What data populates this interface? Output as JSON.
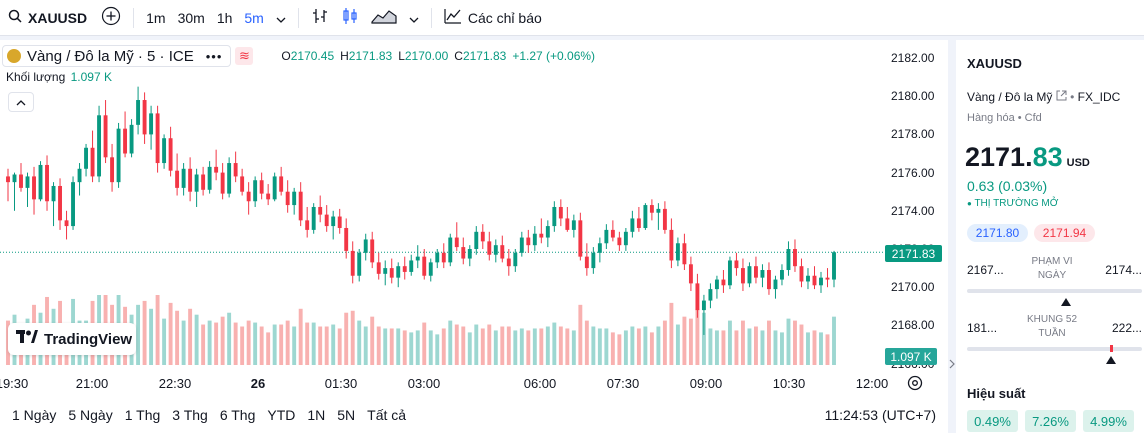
{
  "toolbar": {
    "symbol": "XAUUSD",
    "timeframes": [
      "1m",
      "30m",
      "1h",
      "5m"
    ],
    "indicators_label": "Các chỉ báo"
  },
  "legend": {
    "title": "Vàng / Đô la Mỹ · 5 · ICE",
    "o_label": "O",
    "o": "2170.45",
    "h_label": "H",
    "h": "2171.83",
    "l_label": "L",
    "l": "2170.00",
    "c_label": "C",
    "c": "2171.83",
    "change": "+1.27 (+0.06%)",
    "volume_label": "Khối lượng",
    "volume_value": "1.097 K"
  },
  "y_axis": [
    "2182.00",
    "2180.00",
    "2178.00",
    "2176.00",
    "2174.00",
    "2172.00",
    "2170.00",
    "2168.00",
    "2166.00"
  ],
  "x_axis": [
    "19:30",
    "21:00",
    "22:30",
    "26",
    "01:30",
    "03:00",
    "06:00",
    "07:30",
    "09:00",
    "10:30",
    "12:00"
  ],
  "last_price_tag": "2171.83",
  "volume_tag": "1.097 K",
  "logo_text": "TradingView",
  "ranges": [
    "1 Ngày",
    "5 Ngày",
    "1 Thg",
    "3 Thg",
    "6 Thg",
    "YTD",
    "1N",
    "5N",
    "Tất cả"
  ],
  "clock": "11:24:53 (UTC+7)",
  "panel": {
    "symbol": "XAUUSD",
    "name": "Vàng / Đô la Mỹ",
    "source": "FX_IDC",
    "category": "Hàng hóa • Cfd",
    "price_int": "2171.",
    "price_dec": "83",
    "currency": "USD",
    "change": "0.63 (0.03%)",
    "market_status": "THỊ TRƯỜNG MỞ",
    "bid": "2171.80",
    "ask": "2171.94",
    "day_low": "2167...",
    "day_high": "2174...",
    "day_label_1": "PHẠM VI",
    "day_label_2": "NGÀY",
    "week_low": "181...",
    "week_high": "222...",
    "week_label_1": "KHUNG 52",
    "week_label_2": "TUẦN",
    "performance_title": "Hiệu suất",
    "performance": [
      "0.49%",
      "7.26%",
      "4.99%"
    ]
  },
  "chart_data": {
    "type": "candlestick",
    "ylim": [
      2166,
      2183
    ],
    "candles": [
      [
        2175.8,
        2176.2,
        2174.5,
        2175.5
      ],
      [
        2175.5,
        2176.0,
        2174.0,
        2175.9
      ],
      [
        2175.9,
        2176.5,
        2175.0,
        2175.2
      ],
      [
        2175.2,
        2176.0,
        2174.2,
        2175.8
      ],
      [
        2175.8,
        2176.3,
        2173.8,
        2174.6
      ],
      [
        2174.6,
        2176.6,
        2174.5,
        2176.4
      ],
      [
        2176.4,
        2176.9,
        2174.0,
        2174.5
      ],
      [
        2174.5,
        2175.5,
        2173.2,
        2175.3
      ],
      [
        2175.3,
        2175.7,
        2173.0,
        2173.5
      ],
      [
        2173.5,
        2174.0,
        2172.5,
        2173.2
      ],
      [
        2173.2,
        2175.8,
        2173.0,
        2175.5
      ],
      [
        2175.5,
        2176.5,
        2174.8,
        2176.2
      ],
      [
        2176.2,
        2177.5,
        2175.8,
        2177.3
      ],
      [
        2177.3,
        2178.2,
        2175.5,
        2175.8
      ],
      [
        2175.8,
        2179.5,
        2175.5,
        2179.0
      ],
      [
        2179.0,
        2179.8,
        2176.5,
        2176.8
      ],
      [
        2176.8,
        2177.5,
        2175.0,
        2175.5
      ],
      [
        2175.5,
        2178.6,
        2175.2,
        2178.3
      ],
      [
        2178.3,
        2179.2,
        2176.8,
        2177.0
      ],
      [
        2177.0,
        2178.8,
        2176.8,
        2178.5
      ],
      [
        2178.5,
        2180.5,
        2178.0,
        2179.8
      ],
      [
        2179.8,
        2180.2,
        2177.5,
        2178.0
      ],
      [
        2178.0,
        2179.5,
        2177.2,
        2179.1
      ],
      [
        2179.1,
        2179.5,
        2176.0,
        2176.5
      ],
      [
        2176.5,
        2178.0,
        2176.2,
        2177.8
      ],
      [
        2177.8,
        2178.4,
        2175.8,
        2176.1
      ],
      [
        2176.1,
        2177.0,
        2174.8,
        2175.2
      ],
      [
        2175.2,
        2176.5,
        2174.8,
        2176.2
      ],
      [
        2176.2,
        2176.8,
        2174.5,
        2175.0
      ],
      [
        2175.0,
        2176.2,
        2174.2,
        2175.9
      ],
      [
        2175.9,
        2176.3,
        2174.8,
        2175.1
      ],
      [
        2175.1,
        2176.6,
        2174.9,
        2176.3
      ],
      [
        2176.3,
        2177.2,
        2175.6,
        2176.0
      ],
      [
        2176.0,
        2176.5,
        2174.6,
        2174.9
      ],
      [
        2174.9,
        2176.8,
        2174.7,
        2176.5
      ],
      [
        2176.5,
        2177.1,
        2175.5,
        2175.8
      ],
      [
        2175.8,
        2176.2,
        2174.8,
        2175.0
      ],
      [
        2175.0,
        2175.5,
        2173.8,
        2174.5
      ],
      [
        2174.5,
        2175.8,
        2174.2,
        2175.6
      ],
      [
        2175.6,
        2176.0,
        2174.6,
        2174.9
      ],
      [
        2174.9,
        2175.4,
        2174.3,
        2174.6
      ],
      [
        2174.6,
        2176.0,
        2174.5,
        2175.8
      ],
      [
        2175.8,
        2176.3,
        2174.8,
        2175.0
      ],
      [
        2175.0,
        2175.6,
        2173.9,
        2174.3
      ],
      [
        2174.3,
        2175.2,
        2173.8,
        2175.0
      ],
      [
        2175.0,
        2175.5,
        2173.2,
        2173.5
      ],
      [
        2173.5,
        2174.2,
        2172.6,
        2173.0
      ],
      [
        2173.0,
        2174.4,
        2172.8,
        2174.2
      ],
      [
        2174.2,
        2174.8,
        2173.4,
        2173.8
      ],
      [
        2173.8,
        2174.3,
        2172.9,
        2173.2
      ],
      [
        2173.2,
        2174.0,
        2172.5,
        2173.7
      ],
      [
        2173.7,
        2174.1,
        2172.8,
        2173.1
      ],
      [
        2173.1,
        2173.6,
        2171.5,
        2171.9
      ],
      [
        2171.9,
        2172.4,
        2170.2,
        2170.6
      ],
      [
        2170.6,
        2172.0,
        2170.3,
        2171.8
      ],
      [
        2171.8,
        2172.8,
        2171.4,
        2172.5
      ],
      [
        2172.5,
        2172.9,
        2171.0,
        2171.3
      ],
      [
        2171.3,
        2171.8,
        2170.4,
        2170.7
      ],
      [
        2170.7,
        2171.4,
        2170.1,
        2171.0
      ],
      [
        2171.0,
        2171.5,
        2170.2,
        2170.5
      ],
      [
        2170.5,
        2171.3,
        2170.0,
        2171.1
      ],
      [
        2171.1,
        2171.6,
        2170.4,
        2170.8
      ],
      [
        2170.8,
        2171.7,
        2170.6,
        2171.4
      ],
      [
        2171.4,
        2172.2,
        2171.0,
        2171.6
      ],
      [
        2171.6,
        2172.0,
        2170.4,
        2170.6
      ],
      [
        2170.6,
        2171.5,
        2170.3,
        2171.3
      ],
      [
        2171.3,
        2172.0,
        2171.0,
        2171.8
      ],
      [
        2171.8,
        2172.3,
        2171.0,
        2171.3
      ],
      [
        2171.3,
        2172.8,
        2171.1,
        2172.6
      ],
      [
        2172.6,
        2173.4,
        2171.9,
        2172.1
      ],
      [
        2172.1,
        2172.6,
        2171.2,
        2171.5
      ],
      [
        2171.5,
        2172.2,
        2171.1,
        2172.0
      ],
      [
        2172.0,
        2173.2,
        2171.7,
        2172.9
      ],
      [
        2172.9,
        2173.3,
        2172.0,
        2172.4
      ],
      [
        2172.4,
        2172.9,
        2171.4,
        2171.7
      ],
      [
        2171.7,
        2172.5,
        2171.3,
        2172.2
      ],
      [
        2172.2,
        2172.7,
        2171.3,
        2171.5
      ],
      [
        2171.5,
        2172.0,
        2170.6,
        2171.1
      ],
      [
        2171.1,
        2172.0,
        2170.8,
        2171.8
      ],
      [
        2171.8,
        2172.9,
        2171.6,
        2172.6
      ],
      [
        2172.6,
        2173.0,
        2171.8,
        2172.2
      ],
      [
        2172.2,
        2173.2,
        2171.9,
        2172.8
      ],
      [
        2172.8,
        2173.6,
        2172.3,
        2172.6
      ],
      [
        2172.6,
        2173.5,
        2172.1,
        2173.2
      ],
      [
        2173.2,
        2174.5,
        2172.9,
        2174.2
      ],
      [
        2174.2,
        2174.6,
        2173.2,
        2173.6
      ],
      [
        2173.6,
        2174.2,
        2172.9,
        2173.0
      ],
      [
        2173.0,
        2173.8,
        2172.6,
        2173.5
      ],
      [
        2173.5,
        2173.9,
        2171.4,
        2171.6
      ],
      [
        2171.6,
        2172.3,
        2170.6,
        2171.0
      ],
      [
        2171.0,
        2172.1,
        2170.7,
        2171.8
      ],
      [
        2171.8,
        2172.6,
        2171.3,
        2172.3
      ],
      [
        2172.3,
        2173.3,
        2172.0,
        2173.0
      ],
      [
        2173.0,
        2173.5,
        2172.4,
        2172.6
      ],
      [
        2172.6,
        2172.9,
        2171.9,
        2172.2
      ],
      [
        2172.2,
        2173.1,
        2171.9,
        2172.9
      ],
      [
        2172.9,
        2174.0,
        2172.6,
        2173.6
      ],
      [
        2173.6,
        2174.2,
        2172.9,
        2173.1
      ],
      [
        2173.1,
        2174.4,
        2173.0,
        2174.3
      ],
      [
        2174.3,
        2174.6,
        2173.5,
        2173.9
      ],
      [
        2173.9,
        2174.4,
        2173.0,
        2174.1
      ],
      [
        2174.1,
        2174.5,
        2172.8,
        2173.0
      ],
      [
        2173.0,
        2173.6,
        2171.0,
        2171.4
      ],
      [
        2171.4,
        2172.6,
        2171.1,
        2172.3
      ],
      [
        2172.3,
        2172.8,
        2170.9,
        2171.2
      ],
      [
        2171.2,
        2171.6,
        2169.8,
        2170.2
      ],
      [
        2170.2,
        2170.7,
        2168.4,
        2168.8
      ],
      [
        2168.8,
        2169.6,
        2167.5,
        2169.3
      ],
      [
        2169.3,
        2170.2,
        2168.9,
        2169.9
      ],
      [
        2169.9,
        2170.6,
        2169.4,
        2170.4
      ],
      [
        2170.4,
        2170.9,
        2169.7,
        2170.1
      ],
      [
        2170.1,
        2171.6,
        2169.9,
        2171.4
      ],
      [
        2171.4,
        2171.8,
        2170.6,
        2171.0
      ],
      [
        2171.0,
        2171.5,
        2169.8,
        2170.2
      ],
      [
        2170.2,
        2171.3,
        2170.0,
        2171.1
      ],
      [
        2171.1,
        2171.6,
        2170.2,
        2170.5
      ],
      [
        2170.5,
        2171.2,
        2170.0,
        2170.9
      ],
      [
        2170.9,
        2171.3,
        2169.6,
        2169.9
      ],
      [
        2169.9,
        2170.6,
        2169.4,
        2170.4
      ],
      [
        2170.4,
        2171.2,
        2170.1,
        2170.9
      ],
      [
        2170.9,
        2172.4,
        2170.6,
        2172.0
      ],
      [
        2172.0,
        2172.5,
        2170.8,
        2171.1
      ],
      [
        2171.1,
        2171.5,
        2170.0,
        2170.3
      ],
      [
        2170.3,
        2171.0,
        2169.9,
        2170.6
      ],
      [
        2170.6,
        2171.1,
        2169.9,
        2170.1
      ],
      [
        2170.1,
        2170.8,
        2169.7,
        2170.5
      ],
      [
        2170.5,
        2171.0,
        2170.0,
        2170.4
      ],
      [
        2170.4,
        2171.9,
        2170.0,
        2171.83
      ]
    ],
    "volume_max": 1.6
  }
}
